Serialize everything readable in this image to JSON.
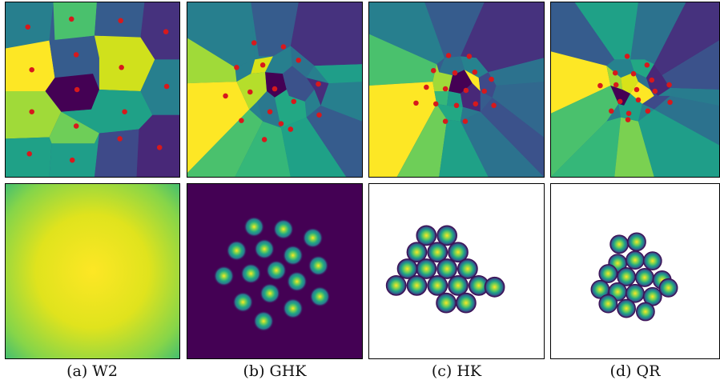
{
  "figure": {
    "captions": [
      "(a) W2",
      "(b) GHK",
      "(c) HK",
      "(d) QR"
    ],
    "palette": {
      "viridis": [
        "#440154",
        "#46327e",
        "#365c8d",
        "#277f8e",
        "#1fa187",
        "#4ac16d",
        "#a0da39",
        "#fde725"
      ],
      "point_color": "#d7191c",
      "background_white": "#ffffff"
    }
  }
}
